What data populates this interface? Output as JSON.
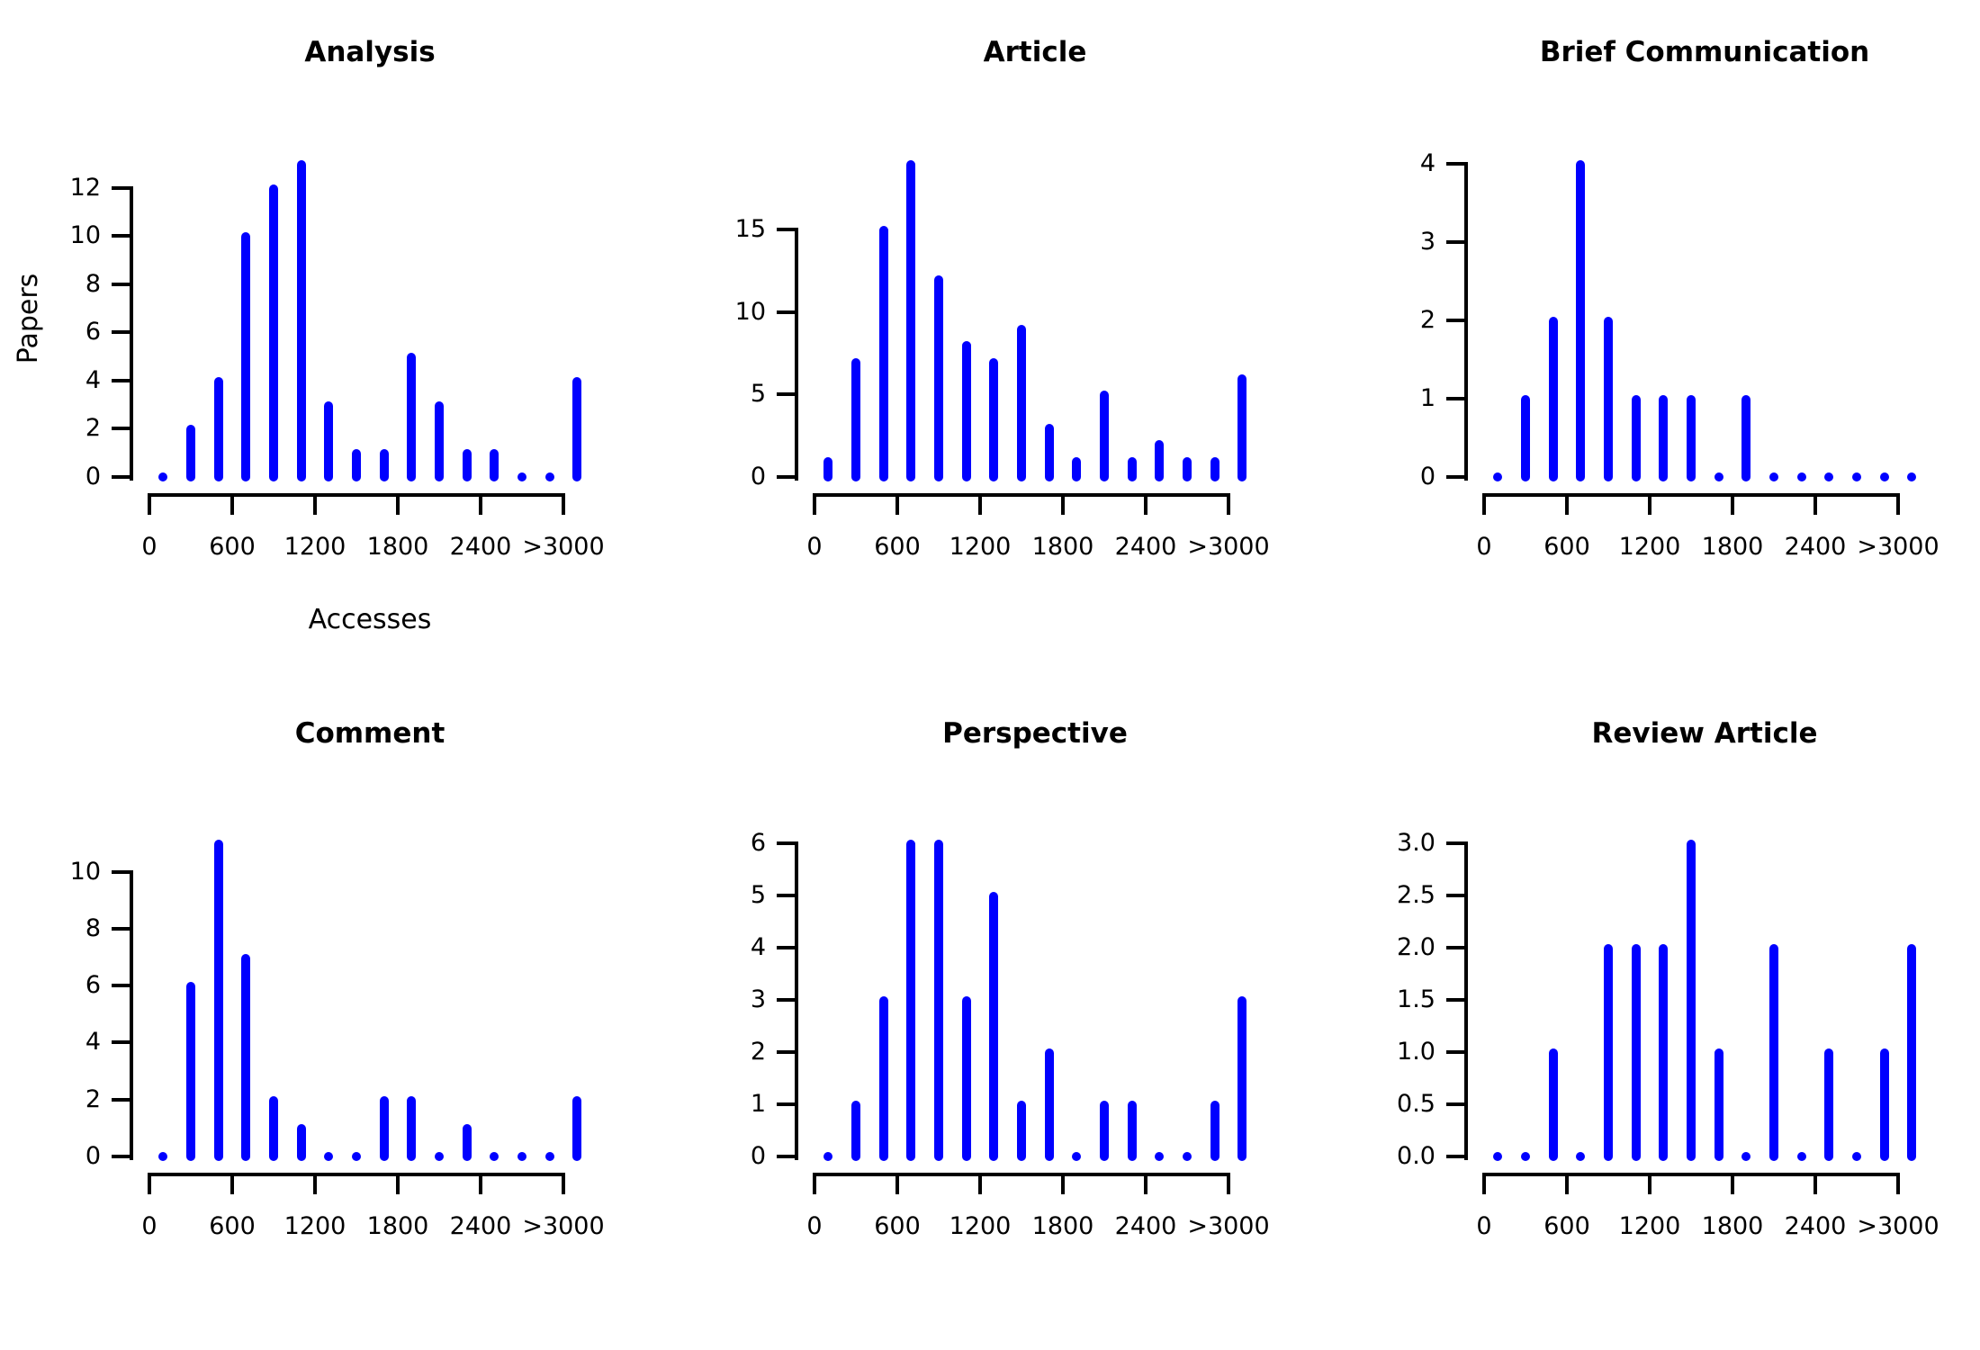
{
  "figure": {
    "ylab": "Papers",
    "xlab": "Accesses",
    "colors": {
      "bar": "#0000FF",
      "axis": "#000000",
      "background": "#FFFFFF"
    },
    "x_axis": {
      "tick_values": [
        0,
        600,
        1200,
        1800,
        2400,
        3000
      ],
      "tick_labels": [
        "0",
        "600",
        "1200",
        "1800",
        "2400",
        ">3000"
      ]
    }
  },
  "chart_data": [
    {
      "type": "bar",
      "title": "Analysis",
      "x": [
        100,
        300,
        500,
        700,
        900,
        1100,
        1300,
        1500,
        1700,
        1900,
        2100,
        2300,
        2500,
        2700,
        2900,
        3100
      ],
      "values": [
        0,
        2,
        4,
        10,
        12,
        13,
        3,
        1,
        1,
        5,
        3,
        1,
        1,
        0,
        0,
        4
      ],
      "yticks": {
        "values": [
          0,
          2,
          4,
          6,
          8,
          10,
          12
        ],
        "labels": [
          "0",
          "2",
          "4",
          "6",
          "8",
          "10",
          "12"
        ]
      },
      "ylim": [
        0,
        13
      ],
      "xlabel": "Accesses",
      "ylabel": "Papers",
      "grid": false,
      "legend": "none"
    },
    {
      "type": "bar",
      "title": "Article",
      "x": [
        100,
        300,
        500,
        700,
        900,
        1100,
        1300,
        1500,
        1700,
        1900,
        2100,
        2300,
        2500,
        2700,
        2900,
        3100
      ],
      "values": [
        1,
        7,
        15,
        19,
        12,
        8,
        7,
        9,
        3,
        1,
        5,
        1,
        2,
        1,
        1,
        6
      ],
      "yticks": {
        "values": [
          0,
          5,
          10,
          15
        ],
        "labels": [
          "0",
          "5",
          "10",
          "15"
        ]
      },
      "ylim": [
        0,
        19
      ],
      "grid": false,
      "legend": "none"
    },
    {
      "type": "bar",
      "title": "Brief Communication",
      "x": [
        100,
        300,
        500,
        700,
        900,
        1100,
        1300,
        1500,
        1700,
        1900,
        2100,
        2300,
        2500,
        2700,
        2900,
        3100
      ],
      "values": [
        0,
        1,
        2,
        4,
        2,
        1,
        1,
        1,
        0,
        1,
        0,
        0,
        0,
        0,
        0,
        0
      ],
      "yticks": {
        "values": [
          0,
          1,
          2,
          3,
          4
        ],
        "labels": [
          "0",
          "1",
          "2",
          "3",
          "4"
        ]
      },
      "ylim": [
        0,
        4
      ],
      "grid": false,
      "legend": "none"
    },
    {
      "type": "bar",
      "title": "Comment",
      "x": [
        100,
        300,
        500,
        700,
        900,
        1100,
        1300,
        1500,
        1700,
        1900,
        2100,
        2300,
        2500,
        2700,
        2900,
        3100
      ],
      "values": [
        0,
        6,
        11,
        7,
        2,
        1,
        0,
        0,
        2,
        2,
        0,
        1,
        0,
        0,
        0,
        2
      ],
      "yticks": {
        "values": [
          0,
          2,
          4,
          6,
          8,
          10
        ],
        "labels": [
          "0",
          "2",
          "4",
          "6",
          "8",
          "10"
        ]
      },
      "ylim": [
        0,
        11
      ],
      "grid": false,
      "legend": "none"
    },
    {
      "type": "bar",
      "title": "Perspective",
      "x": [
        100,
        300,
        500,
        700,
        900,
        1100,
        1300,
        1500,
        1700,
        1900,
        2100,
        2300,
        2500,
        2700,
        2900,
        3100
      ],
      "values": [
        0,
        1,
        3,
        6,
        6,
        3,
        5,
        1,
        2,
        0,
        1,
        1,
        0,
        0,
        1,
        3
      ],
      "yticks": {
        "values": [
          0,
          1,
          2,
          3,
          4,
          5,
          6
        ],
        "labels": [
          "0",
          "1",
          "2",
          "3",
          "4",
          "5",
          "6"
        ]
      },
      "ylim": [
        0,
        6
      ],
      "grid": false,
      "legend": "none"
    },
    {
      "type": "bar",
      "title": "Review Article",
      "x": [
        100,
        300,
        500,
        700,
        900,
        1100,
        1300,
        1500,
        1700,
        1900,
        2100,
        2300,
        2500,
        2700,
        2900,
        3100
      ],
      "values": [
        0,
        0,
        1,
        0,
        2,
        2,
        2,
        3,
        1,
        0,
        2,
        0,
        1,
        0,
        1,
        2
      ],
      "yticks": {
        "values": [
          0,
          0.5,
          1,
          1.5,
          2,
          2.5,
          3
        ],
        "labels": [
          "0.0",
          "0.5",
          "1.0",
          "1.5",
          "2.0",
          "2.5",
          "3.0"
        ]
      },
      "ylim": [
        0,
        3
      ],
      "grid": false,
      "legend": "none"
    }
  ]
}
